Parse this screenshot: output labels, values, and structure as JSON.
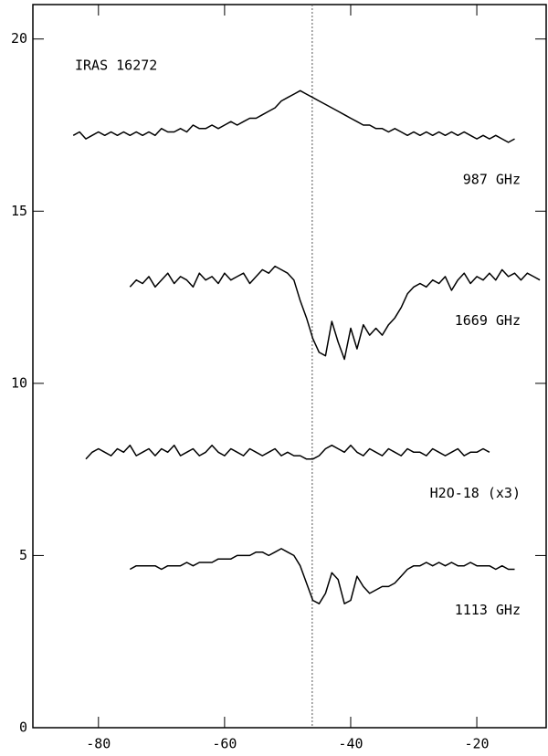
{
  "chart_data": {
    "type": "line",
    "title": "IRAS 16272",
    "x": [
      -84,
      -83,
      -82,
      -81,
      -80,
      -79,
      -78,
      -77,
      -76,
      -75,
      -74,
      -73,
      -72,
      -71,
      -70,
      -69,
      -68,
      -67,
      -66,
      -65,
      -64,
      -63,
      -62,
      -61,
      -60,
      -59,
      -58,
      -57,
      -56,
      -55,
      -54,
      -53,
      -52,
      -51,
      -50,
      -49,
      -48,
      -47,
      -46,
      -45,
      -44,
      -43,
      -42,
      -41,
      -40,
      -39,
      -38,
      -37,
      -36,
      -35,
      -34,
      -33,
      -32,
      -31,
      -30,
      -29,
      -28,
      -27,
      -26,
      -25,
      -24,
      -23,
      -22,
      -21,
      -20,
      -19,
      -18,
      -17,
      -16,
      -15,
      -14,
      -13,
      -12,
      -11,
      -10
    ],
    "series": [
      {
        "name": "987 GHz",
        "color": "#000000",
        "values": [
          17.2,
          17.3,
          17.1,
          17.2,
          17.3,
          17.2,
          17.3,
          17.2,
          17.3,
          17.2,
          17.3,
          17.2,
          17.3,
          17.2,
          17.4,
          17.3,
          17.3,
          17.4,
          17.3,
          17.5,
          17.4,
          17.4,
          17.5,
          17.4,
          17.5,
          17.6,
          17.5,
          17.6,
          17.7,
          17.7,
          17.8,
          17.9,
          18.0,
          18.2,
          18.3,
          18.4,
          18.5,
          18.4,
          18.3,
          18.2,
          18.1,
          18.0,
          17.9,
          17.8,
          17.7,
          17.6,
          17.5,
          17.5,
          17.4,
          17.4,
          17.3,
          17.4,
          17.3,
          17.2,
          17.3,
          17.2,
          17.3,
          17.2,
          17.3,
          17.2,
          17.3,
          17.2,
          17.3,
          17.2,
          17.1,
          17.2,
          17.1,
          17.2,
          17.1,
          17.0,
          17.1,
          null,
          null,
          null,
          null
        ]
      },
      {
        "name": "1669 GHz",
        "color": "#000000",
        "values": [
          null,
          null,
          null,
          null,
          null,
          null,
          null,
          null,
          null,
          12.8,
          13.0,
          12.9,
          13.1,
          12.8,
          13.0,
          13.2,
          12.9,
          13.1,
          13.0,
          12.8,
          13.2,
          13.0,
          13.1,
          12.9,
          13.2,
          13.0,
          13.1,
          13.2,
          12.9,
          13.1,
          13.3,
          13.2,
          13.4,
          13.3,
          13.2,
          13.0,
          12.4,
          11.9,
          11.3,
          10.9,
          10.8,
          11.8,
          11.2,
          10.7,
          11.6,
          11.0,
          11.7,
          11.4,
          11.6,
          11.4,
          11.7,
          11.9,
          12.2,
          12.6,
          12.8,
          12.9,
          12.8,
          13.0,
          12.9,
          13.1,
          12.7,
          13.0,
          13.2,
          12.9,
          13.1,
          13.0,
          13.2,
          13.0,
          13.3,
          13.1,
          13.2,
          13.0,
          13.2,
          13.1,
          13.0
        ]
      },
      {
        "name": "H2O-18 (x3)",
        "color": "#000000",
        "values": [
          null,
          null,
          7.8,
          8.0,
          8.1,
          8.0,
          7.9,
          8.1,
          8.0,
          8.2,
          7.9,
          8.0,
          8.1,
          7.9,
          8.1,
          8.0,
          8.2,
          7.9,
          8.0,
          8.1,
          7.9,
          8.0,
          8.2,
          8.0,
          7.9,
          8.1,
          8.0,
          7.9,
          8.1,
          8.0,
          7.9,
          8.0,
          8.1,
          7.9,
          8.0,
          7.9,
          7.9,
          7.8,
          7.8,
          7.9,
          8.1,
          8.2,
          8.1,
          8.0,
          8.2,
          8.0,
          7.9,
          8.1,
          8.0,
          7.9,
          8.1,
          8.0,
          7.9,
          8.1,
          8.0,
          8.0,
          7.9,
          8.1,
          8.0,
          7.9,
          8.0,
          8.1,
          7.9,
          8.0,
          8.0,
          8.1,
          8.0,
          null,
          null,
          null,
          null,
          null,
          null,
          null,
          null
        ]
      },
      {
        "name": "1113 GHz",
        "color": "#000000",
        "values": [
          null,
          null,
          null,
          null,
          null,
          null,
          null,
          null,
          null,
          4.6,
          4.7,
          4.7,
          4.7,
          4.7,
          4.6,
          4.7,
          4.7,
          4.7,
          4.8,
          4.7,
          4.8,
          4.8,
          4.8,
          4.9,
          4.9,
          4.9,
          5.0,
          5.0,
          5.0,
          5.1,
          5.1,
          5.0,
          5.1,
          5.2,
          5.1,
          5.0,
          4.7,
          4.2,
          3.7,
          3.6,
          3.9,
          4.5,
          4.3,
          3.6,
          3.7,
          4.4,
          4.1,
          3.9,
          4.0,
          4.1,
          4.1,
          4.2,
          4.4,
          4.6,
          4.7,
          4.7,
          4.8,
          4.7,
          4.8,
          4.7,
          4.8,
          4.7,
          4.7,
          4.8,
          4.7,
          4.7,
          4.7,
          4.6,
          4.7,
          4.6,
          4.6,
          null,
          null,
          null,
          null
        ]
      }
    ],
    "vline": -46.1,
    "xlim": [
      -90.4,
      -9
    ],
    "xticks": [
      -80,
      -60,
      -40,
      -20
    ],
    "ylim": [
      0,
      21
    ],
    "yticks": [
      0,
      5,
      10,
      15,
      20
    ]
  }
}
